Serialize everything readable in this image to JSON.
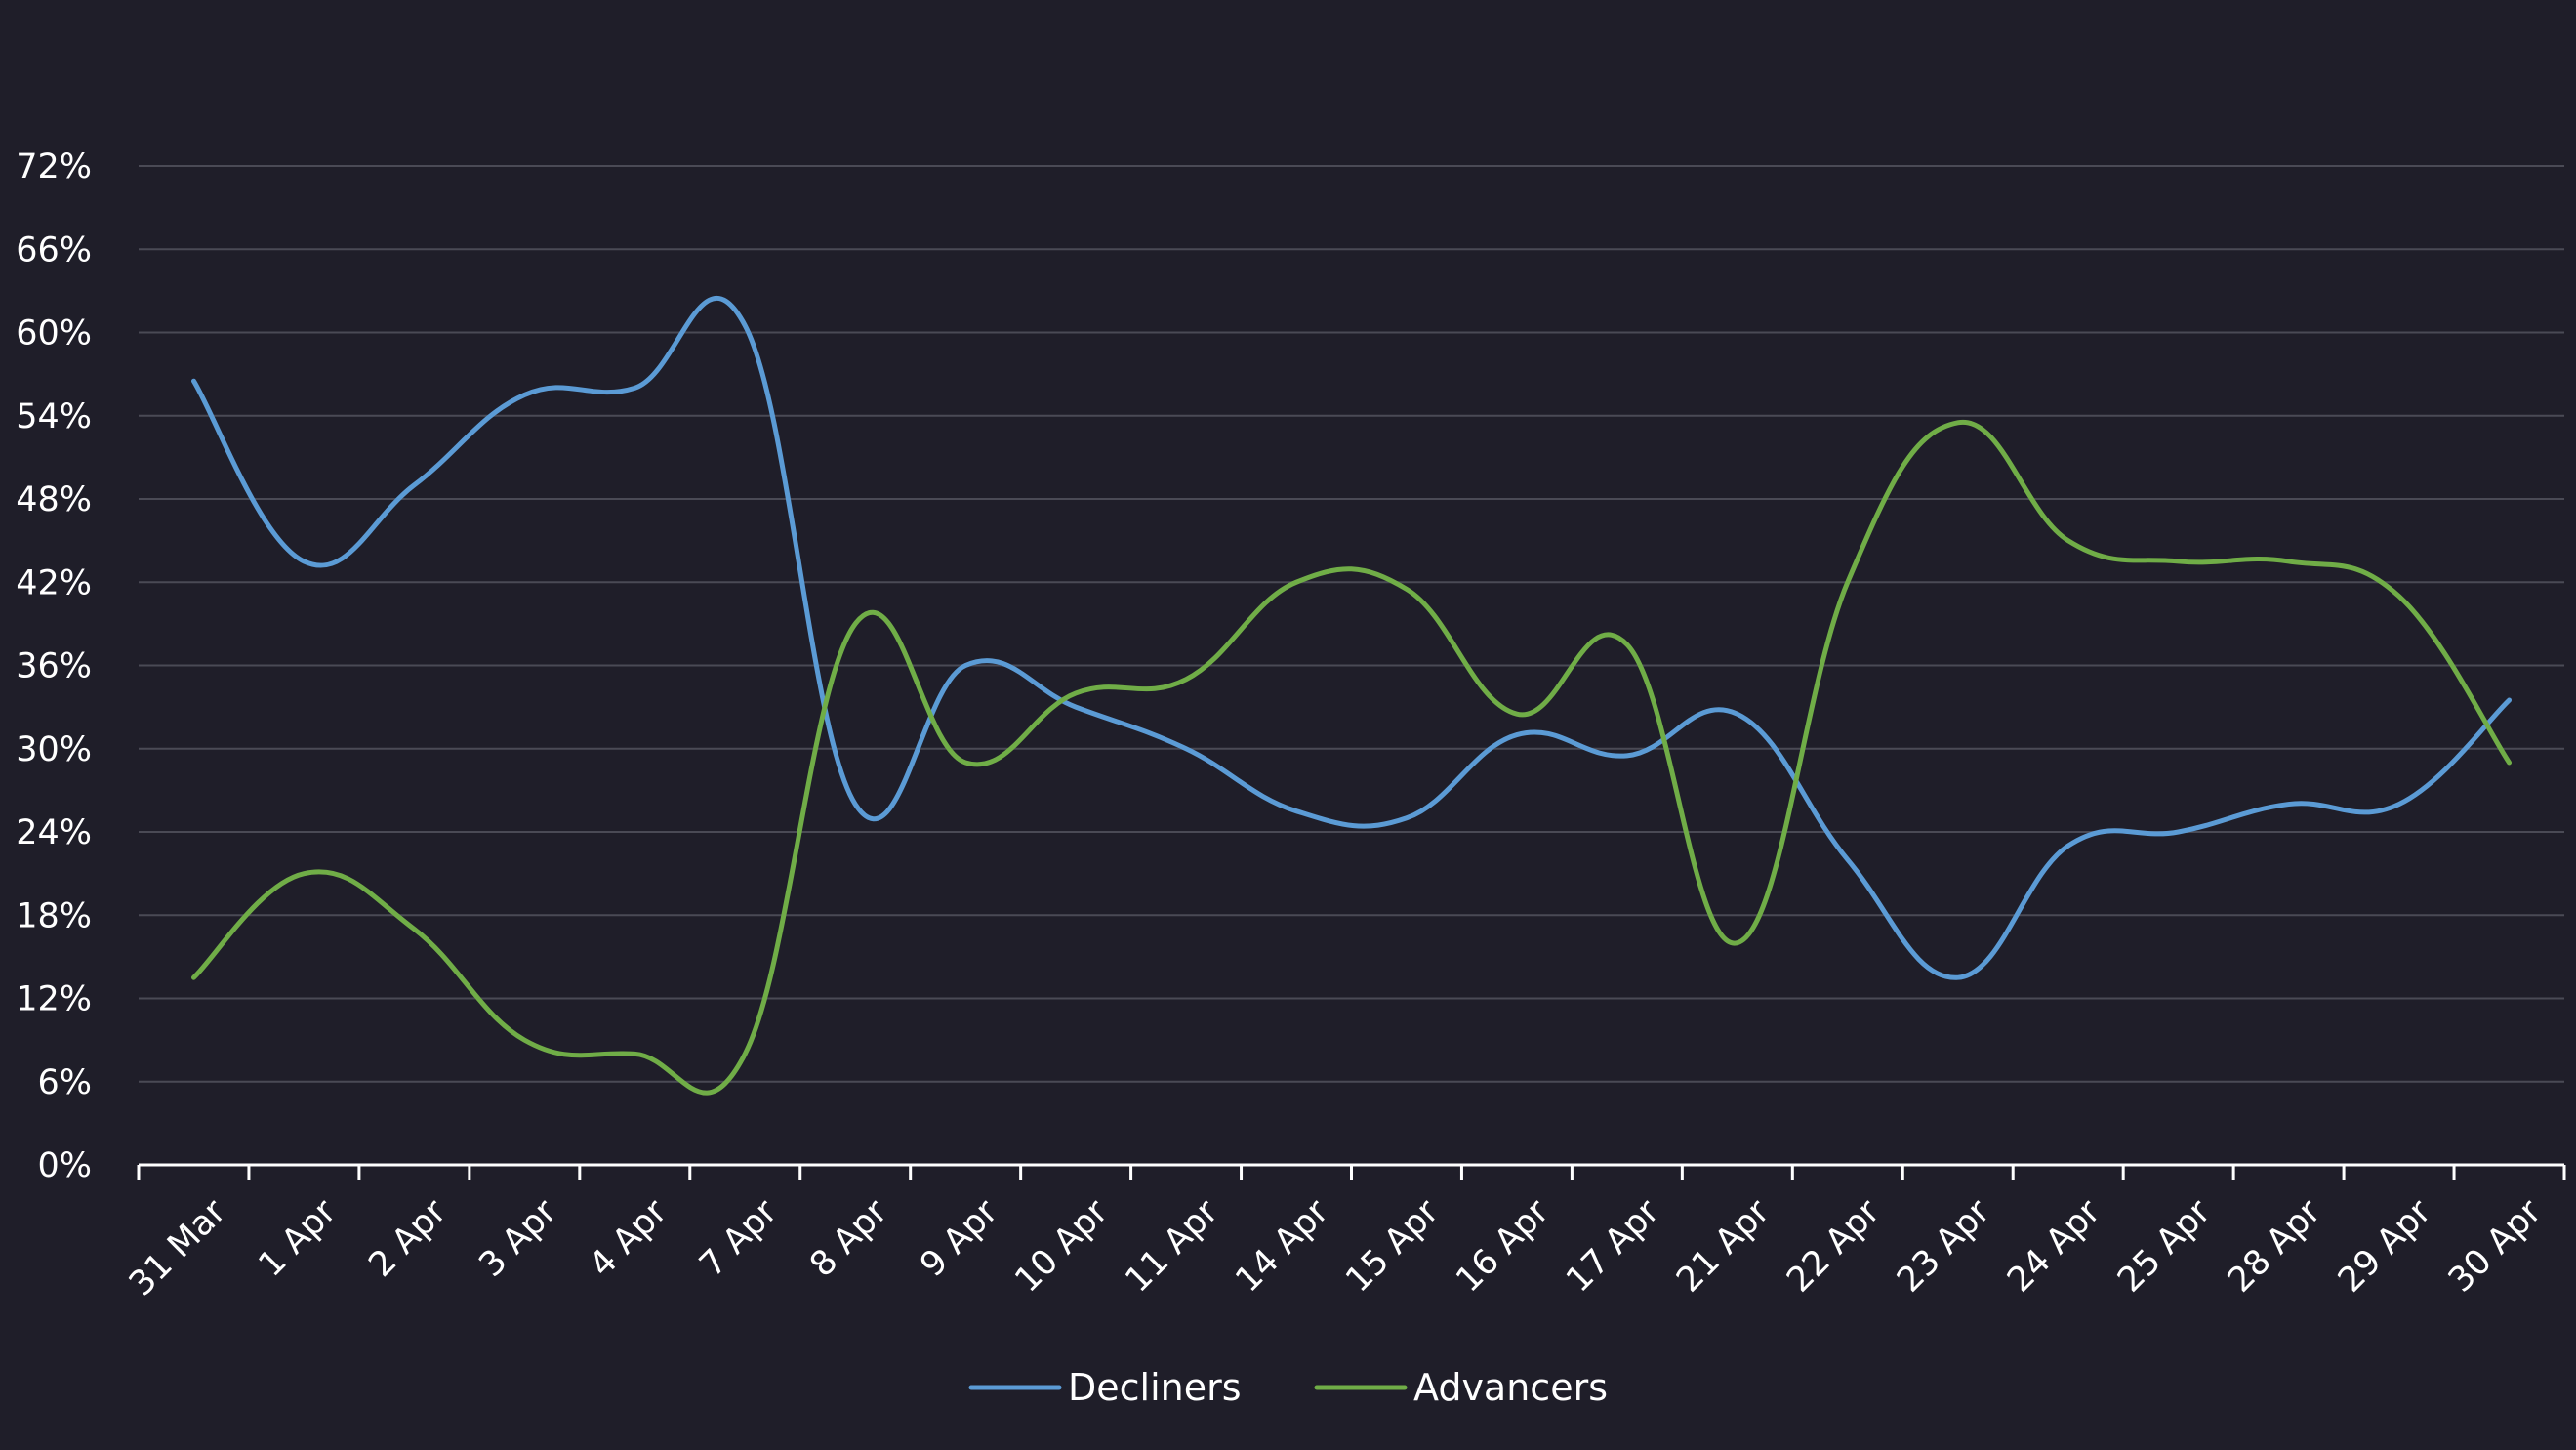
{
  "chart_data": {
    "type": "line",
    "title": "",
    "xlabel": "",
    "ylabel": "",
    "categories": [
      "31 Mar",
      "1 Apr",
      "2 Apr",
      "3 Apr",
      "4 Apr",
      "7 Apr",
      "8 Apr",
      "9 Apr",
      "10 Apr",
      "11 Apr",
      "14 Apr",
      "15 Apr",
      "16 Apr",
      "17 Apr",
      "21 Apr",
      "22 Apr",
      "23 Apr",
      "24 Apr",
      "25 Apr",
      "28 Apr",
      "29 Apr",
      "30 Apr"
    ],
    "ylim": [
      0,
      72
    ],
    "yticks": [
      {
        "value": 0,
        "label": "0%"
      },
      {
        "value": 6,
        "label": "6%"
      },
      {
        "value": 12,
        "label": "12%"
      },
      {
        "value": 18,
        "label": "18%"
      },
      {
        "value": 24,
        "label": "24%"
      },
      {
        "value": 30,
        "label": "30%"
      },
      {
        "value": 36,
        "label": "36%"
      },
      {
        "value": 42,
        "label": "42%"
      },
      {
        "value": 48,
        "label": "48%"
      },
      {
        "value": 54,
        "label": "54%"
      },
      {
        "value": 60,
        "label": "60%"
      },
      {
        "value": 66,
        "label": "66%"
      },
      {
        "value": 72,
        "label": "72%"
      }
    ],
    "grid": true,
    "legend_position": "bottom-center",
    "series": [
      {
        "name": "Decliners",
        "color": "#5b9bd5",
        "values": [
          56.5,
          43.5,
          49,
          55.5,
          56,
          60.5,
          26,
          36,
          33,
          30,
          25.5,
          25,
          31,
          29.5,
          32.5,
          22,
          13.5,
          23,
          24,
          26,
          26,
          33.5
        ]
      },
      {
        "name": "Advancers",
        "color": "#70ad47",
        "values": [
          13.5,
          21,
          17,
          9,
          8,
          8,
          39,
          29,
          34,
          35,
          42,
          41.5,
          32.5,
          37.5,
          16,
          42,
          53.5,
          45,
          43.5,
          43.5,
          41,
          29
        ]
      }
    ]
  }
}
